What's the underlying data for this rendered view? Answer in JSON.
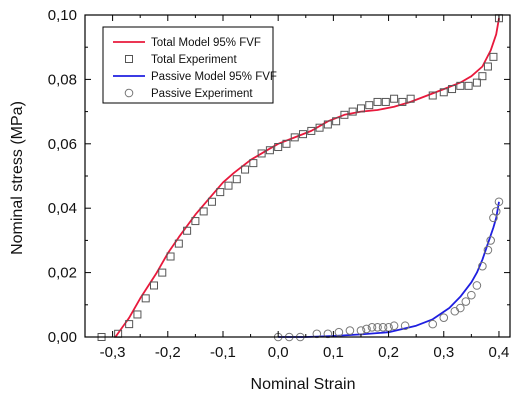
{
  "chart_data": {
    "type": "scatter",
    "title": "",
    "xlabel": "Nominal Strain",
    "ylabel": "Nominal stress (MPa)",
    "xlim": [
      -0.35,
      0.42
    ],
    "ylim": [
      0.0,
      0.1
    ],
    "x_ticks": [
      -0.3,
      -0.2,
      -0.1,
      0.0,
      0.1,
      0.2,
      0.3,
      0.4
    ],
    "x_tick_labels": [
      "-0,3",
      "-0,2",
      "-0,1",
      "0,0",
      "0,1",
      "0,2",
      "0,3",
      "0,4"
    ],
    "y_ticks": [
      0.0,
      0.02,
      0.04,
      0.06,
      0.08,
      0.1
    ],
    "y_tick_labels": [
      "0,00",
      "0,02",
      "0,04",
      "0,06",
      "0,08",
      "0,10"
    ],
    "grid": false,
    "legend_position": "top-left",
    "series": [
      {
        "name": "Total Model 95% FVF",
        "kind": "line",
        "color": "#e8193c",
        "x": [
          -0.295,
          -0.27,
          -0.25,
          -0.22,
          -0.2,
          -0.18,
          -0.15,
          -0.12,
          -0.1,
          -0.08,
          -0.05,
          -0.02,
          0.0,
          0.03,
          0.06,
          0.09,
          0.12,
          0.15,
          0.18,
          0.21,
          0.24,
          0.27,
          0.3,
          0.33,
          0.35,
          0.37,
          0.385,
          0.395,
          0.4
        ],
        "y": [
          0.0,
          0.006,
          0.012,
          0.02,
          0.026,
          0.031,
          0.038,
          0.044,
          0.048,
          0.051,
          0.055,
          0.058,
          0.06,
          0.062,
          0.064,
          0.067,
          0.069,
          0.07,
          0.0705,
          0.0715,
          0.073,
          0.075,
          0.077,
          0.079,
          0.081,
          0.084,
          0.089,
          0.094,
          0.099
        ]
      },
      {
        "name": "Total Experiment",
        "kind": "scatter",
        "marker": "square",
        "color": "#555555",
        "x": [
          -0.32,
          -0.29,
          -0.27,
          -0.255,
          -0.24,
          -0.225,
          -0.21,
          -0.195,
          -0.18,
          -0.165,
          -0.15,
          -0.135,
          -0.12,
          -0.105,
          -0.09,
          -0.075,
          -0.06,
          -0.045,
          -0.03,
          -0.015,
          0.0,
          0.015,
          0.03,
          0.045,
          0.06,
          0.075,
          0.09,
          0.105,
          0.12,
          0.135,
          0.15,
          0.165,
          0.18,
          0.195,
          0.21,
          0.225,
          0.24,
          0.28,
          0.3,
          0.315,
          0.33,
          0.345,
          0.36,
          0.37,
          0.38,
          0.39,
          0.4
        ],
        "y": [
          0.0,
          0.001,
          0.004,
          0.007,
          0.012,
          0.016,
          0.02,
          0.025,
          0.029,
          0.033,
          0.036,
          0.039,
          0.042,
          0.045,
          0.047,
          0.049,
          0.052,
          0.054,
          0.057,
          0.058,
          0.059,
          0.06,
          0.062,
          0.063,
          0.064,
          0.065,
          0.066,
          0.067,
          0.069,
          0.07,
          0.071,
          0.072,
          0.073,
          0.073,
          0.074,
          0.073,
          0.074,
          0.075,
          0.076,
          0.077,
          0.078,
          0.078,
          0.079,
          0.081,
          0.084,
          0.087,
          0.099
        ]
      },
      {
        "name": "Passive Model 95% FVF",
        "kind": "line",
        "color": "#1f1fe0",
        "x": [
          0.0,
          0.05,
          0.1,
          0.15,
          0.2,
          0.25,
          0.28,
          0.31,
          0.33,
          0.35,
          0.36,
          0.37,
          0.38,
          0.39,
          0.395,
          0.4
        ],
        "y": [
          0.0,
          0.0,
          0.0003,
          0.0008,
          0.0015,
          0.0035,
          0.0055,
          0.009,
          0.0125,
          0.017,
          0.02,
          0.024,
          0.029,
          0.034,
          0.037,
          0.042
        ]
      },
      {
        "name": "Passive Experiment",
        "kind": "scatter",
        "marker": "circle",
        "color": "#777777",
        "x": [
          0.0,
          0.02,
          0.04,
          0.07,
          0.09,
          0.11,
          0.13,
          0.15,
          0.16,
          0.17,
          0.18,
          0.19,
          0.2,
          0.21,
          0.23,
          0.28,
          0.3,
          0.32,
          0.33,
          0.34,
          0.35,
          0.36,
          0.37,
          0.38,
          0.385,
          0.39,
          0.395,
          0.4
        ],
        "y": [
          0.0,
          0.0,
          0.0,
          0.001,
          0.001,
          0.0015,
          0.002,
          0.002,
          0.0025,
          0.003,
          0.003,
          0.003,
          0.003,
          0.0035,
          0.0035,
          0.004,
          0.006,
          0.008,
          0.009,
          0.011,
          0.013,
          0.016,
          0.022,
          0.027,
          0.03,
          0.037,
          0.039,
          0.042
        ]
      }
    ]
  }
}
